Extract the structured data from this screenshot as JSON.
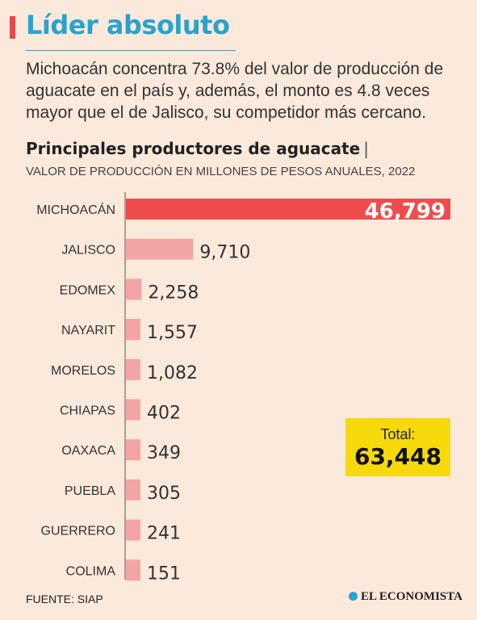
{
  "header": {
    "title": "Líder absoluto",
    "subtitle": "Michoacán concentra 73.8% del valor de producción de aguacate en el país y, además, el monto es 4.8 veces mayor que el de Jalisco, su competidor más cercano."
  },
  "colors": {
    "accent": "#e8484a",
    "title": "#2aa3cc",
    "bar_primary": "#ee4d4d",
    "bar_secondary": "#f3a5a5",
    "total_box": "#f5d90a"
  },
  "chart_data": {
    "type": "bar",
    "orientation": "horizontal",
    "title": "Principales productores de aguacate",
    "subtitle": "VALOR DE PRODUCCIÓN EN MILLONES DE PESOS ANUALES, 2022",
    "categories": [
      "MICHOACÁN",
      "JALISCO",
      "EDOMEX",
      "NAYARIT",
      "MORELOS",
      "CHIAPAS",
      "OAXACA",
      "PUEBLA",
      "GUERRERO",
      "COLIMA"
    ],
    "values": [
      46799,
      9710,
      2258,
      1557,
      1082,
      402,
      349,
      305,
      241,
      151
    ],
    "value_labels": [
      "46,799",
      "9,710",
      "2,258",
      "1,557",
      "1,082",
      "402",
      "349",
      "305",
      "241",
      "151"
    ],
    "xlim": [
      0,
      46799
    ],
    "grid": false,
    "highlight_index": 0
  },
  "total": {
    "label": "Total:",
    "value": "63,448"
  },
  "footer": {
    "source": "FUENTE: SIAP",
    "brand": "EL ECONOMISTA"
  }
}
